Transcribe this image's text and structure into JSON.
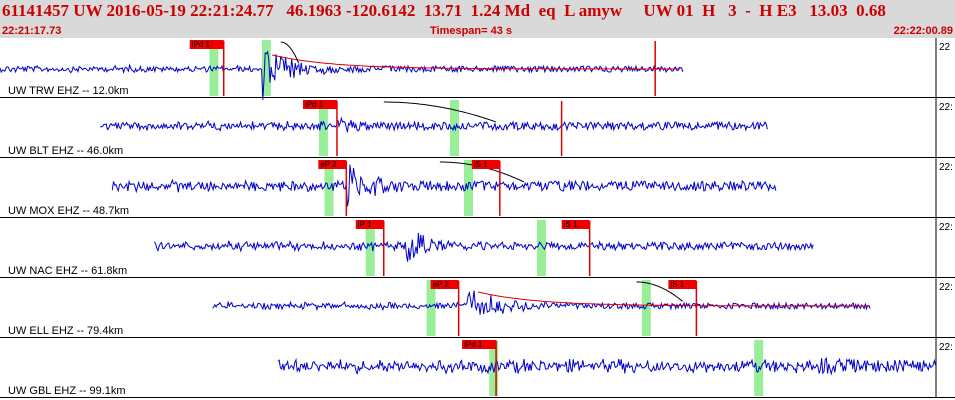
{
  "header": {
    "title": "61141457 UW 2016-05-19 22:21:24.77   46.1963 -120.6142  13.71  1.24 Md  eq  L amyw     UW 01  H   3  -  H E3   13.03  0.68",
    "start_time": "22:21:17.73",
    "timespan": "Timespan=  43 s",
    "end_time": "22:22:00.89"
  },
  "colors": {
    "trace": "#0000cc",
    "pick_line": "#dd0000",
    "pick_bg": "#ee0000",
    "window": "#99ee99",
    "fit_red": "#dd0000",
    "fit_black": "#000000",
    "header_bg": "#d9d9d9",
    "header_text": "#cc0000"
  },
  "traces": [
    {
      "label": "UW TRW EHZ -- 12.0km",
      "corner": "22",
      "start": 0.0,
      "end": 0.73,
      "onset": 0.28,
      "amp": 3,
      "burst": 20,
      "decay": 0.04,
      "green": [
        0.228,
        0.284
      ],
      "picks": [
        {
          "label": "iPd 1",
          "x": 0.239
        },
        {
          "x": 0.7,
          "label": ""
        }
      ],
      "red_curve": true,
      "black_curve": [
        0.3,
        0.32
      ]
    },
    {
      "label": "UW BLT EHZ -- 46.0km",
      "corner": "22:",
      "start": 0.107,
      "end": 0.82,
      "onset": 0.36,
      "amp": 4,
      "burst": 6,
      "decay": 0.1,
      "green": [
        0.345,
        0.485
      ],
      "picks": [
        {
          "label": "iPd 1",
          "x": 0.36
        },
        {
          "x": 0.6,
          "label": ""
        }
      ],
      "red_curve": false,
      "black_curve": [
        0.41,
        0.53
      ]
    },
    {
      "label": "UW MOX EHZ -- 48.7km",
      "corner": "22:",
      "start": 0.12,
      "end": 0.83,
      "onset": 0.37,
      "amp": 5,
      "burst": 20,
      "decay": 0.06,
      "green": [
        0.351,
        0.5
      ],
      "picks": [
        {
          "label": "eP 2",
          "x": 0.37
        },
        {
          "label": "iS 1",
          "x": 0.534
        }
      ],
      "red_curve": false,
      "black_curve": [
        0.47,
        0.56
      ]
    },
    {
      "label": "UW NAC EHZ -- 61.8km",
      "corner": "22:",
      "start": 0.165,
      "end": 0.87,
      "onset": 0.434,
      "amp": 4,
      "burst": 12,
      "decay": 0.05,
      "green": [
        0.395,
        0.578
      ],
      "picks": [
        {
          "label": "iP 1",
          "x": 0.41
        },
        {
          "label": "iS 1",
          "x": 0.63
        }
      ],
      "red_curve": false,
      "black_curve": []
    },
    {
      "label": "UW ELL EHZ -- 79.4km",
      "corner": "22:",
      "start": 0.227,
      "end": 0.93,
      "onset": 0.5,
      "amp": 3,
      "burst": 14,
      "decay": 0.04,
      "green": [
        0.46,
        0.69
      ],
      "picks": [
        {
          "label": "eP 2",
          "x": 0.49
        },
        {
          "label": "iS 1",
          "x": 0.744
        }
      ],
      "red_curve": true,
      "black_curve": [
        0.68,
        0.73
      ]
    },
    {
      "label": "UW GBL EHZ -- 99.1km",
      "corner": "22:",
      "start": 0.297,
      "end": 1.0,
      "onset": 0.875,
      "amp": 6,
      "burst": 3,
      "decay": 0.05,
      "green": [
        0.527,
        0.81
      ],
      "picks": [
        {
          "label": "iPd 1",
          "x": 0.53
        }
      ],
      "red_curve": false,
      "black_curve": []
    }
  ]
}
